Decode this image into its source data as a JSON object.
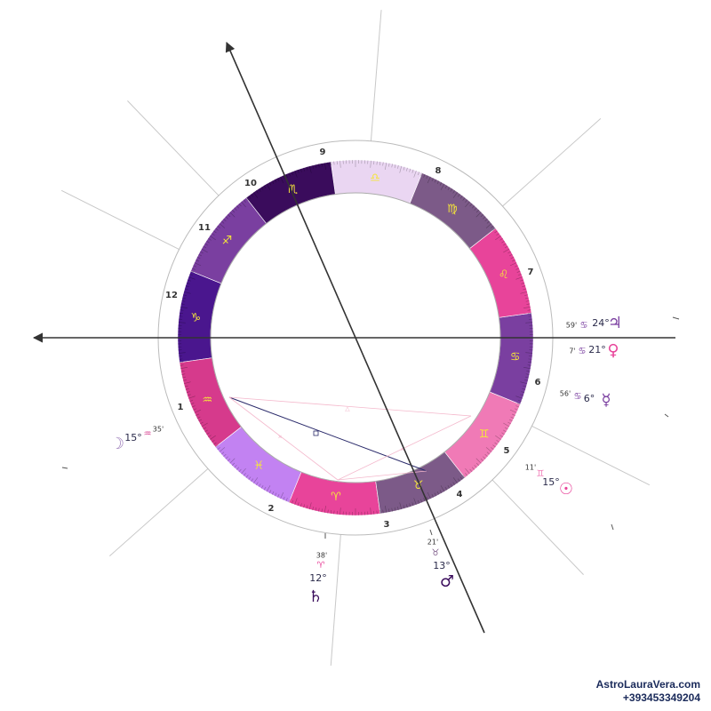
{
  "signs": [
    {
      "glyph": "♈",
      "color": "#e8449a"
    },
    {
      "glyph": "♉",
      "color": "#7c5a88"
    },
    {
      "glyph": "♊",
      "color": "#f07ab6"
    },
    {
      "glyph": "♋",
      "color": "#7a3fa0"
    },
    {
      "glyph": "♌",
      "color": "#e8449a"
    },
    {
      "glyph": "♍",
      "color": "#7c5a88"
    },
    {
      "glyph": "♎",
      "color": "#ead6f2"
    },
    {
      "glyph": "♏",
      "color": "#3a0c5c"
    },
    {
      "glyph": "♐",
      "color": "#7a3fa0"
    },
    {
      "glyph": "♑",
      "color": "#4a168e"
    },
    {
      "glyph": "♒",
      "color": "#d63a8c"
    },
    {
      "glyph": "♓",
      "color": "#c282f2"
    }
  ],
  "houses": [
    "1",
    "2",
    "3",
    "4",
    "5",
    "6",
    "7",
    "8",
    "9",
    "10",
    "11",
    "12"
  ],
  "planets": [
    {
      "glyph": "♃",
      "sign": "♋",
      "degree": "24°",
      "minutes": "59'"
    },
    {
      "glyph": "♀",
      "sign": "♋",
      "degree": "21°",
      "minutes": "7'"
    },
    {
      "glyph": "☿",
      "sign": "♋",
      "degree": "6°",
      "minutes": "56'"
    },
    {
      "glyph": "☉",
      "sign": "♊",
      "degree": "15°",
      "minutes": "11'"
    },
    {
      "glyph": "♂",
      "sign": "♉",
      "degree": "13°",
      "minutes": "21'"
    },
    {
      "glyph": "♄",
      "sign": "♈",
      "degree": "12°",
      "minutes": "38'"
    },
    {
      "glyph": "☽",
      "sign": "♒",
      "degree": "15°",
      "minutes": "35'"
    }
  ],
  "footer": {
    "site": "AstroLauraVera.com",
    "phone": "+393453349204"
  }
}
